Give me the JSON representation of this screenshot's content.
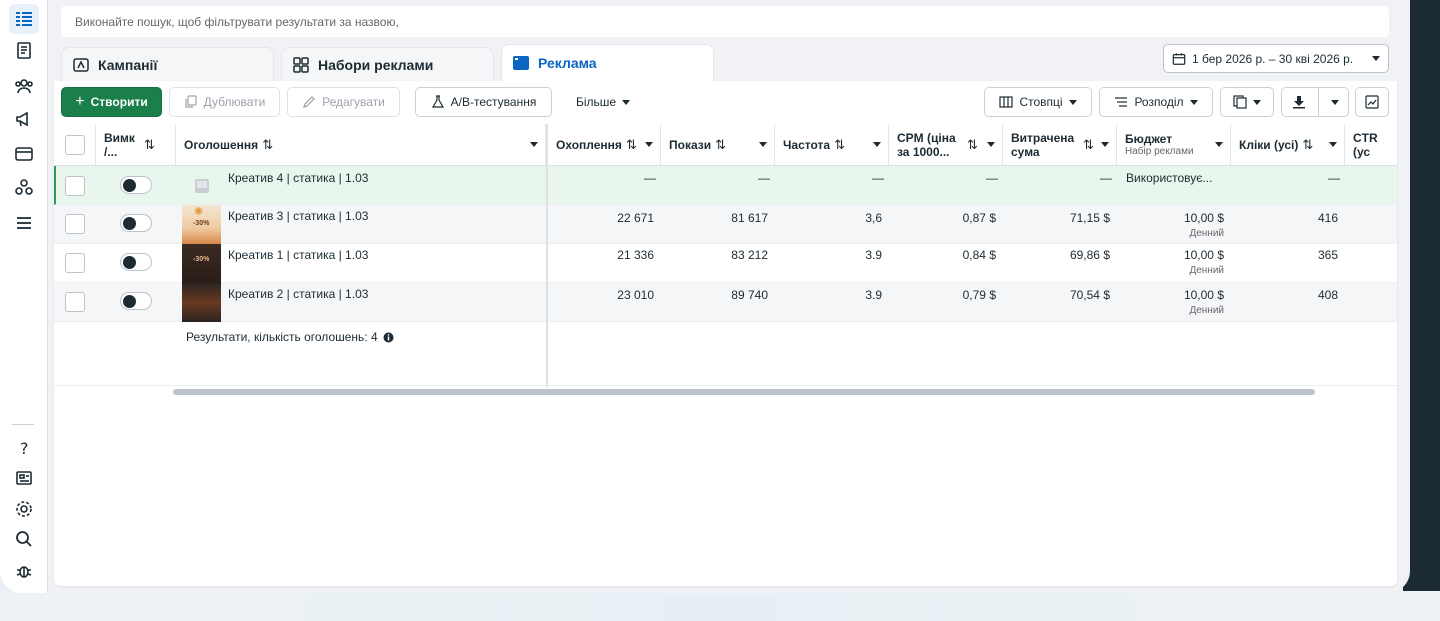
{
  "search": {
    "placeholder": "Виконайте пошук, щоб фільтрувати результати за назвою,"
  },
  "tabs": [
    {
      "label": "Кампанії",
      "icon": "campaign-icon"
    },
    {
      "label": "Набори реклами",
      "icon": "grid-icon"
    },
    {
      "label": "Реклама",
      "icon": "ad-icon",
      "active": true
    }
  ],
  "date_range": "1 бер 2026 р. – 30 кві 2026 р.",
  "toolbar": {
    "create": "Створити",
    "duplicate": "Дублювати",
    "edit": "Редагувати",
    "ab_test": "A/B-тестування",
    "more": "Більше",
    "columns": "Стовпці",
    "breakdown": "Розподіл"
  },
  "table": {
    "headers": {
      "toggle": "Вимк /...",
      "ad": "Оголошення",
      "reach": "Охоплення",
      "impressions": "Покази",
      "frequency": "Частота",
      "cpm": "CPM (ціна за 1000...",
      "spent": "Витрачена сума",
      "budget": "Бюджет",
      "budget_sub": "Набір реклами",
      "clicks": "Кліки (усі)",
      "ctr": "CTR (ус"
    },
    "rows": [
      {
        "name": "Креатив 4 | статика | 1.03",
        "reach": "—",
        "impressions": "—",
        "frequency": "—",
        "cpm": "—",
        "spent": "—",
        "budget": "Використовує...",
        "budget_sub": "",
        "clicks": "—"
      },
      {
        "name": "Креатив 3 | статика | 1.03",
        "reach": "22 671",
        "impressions": "81 617",
        "frequency": "3,6",
        "cpm": "0,87 $",
        "spent": "71,15 $",
        "budget": "10,00 $",
        "budget_sub": "Денний",
        "clicks": "416"
      },
      {
        "name": "Креатив 1 | статика | 1.03",
        "reach": "21 336",
        "impressions": "83 212",
        "frequency": "3.9",
        "cpm": "0,84 $",
        "spent": "69,86 $",
        "budget": "10,00 $",
        "budget_sub": "Денний",
        "clicks": "365"
      },
      {
        "name": "Креатив 2 | статика | 1.03",
        "reach": "23 010",
        "impressions": "89 740",
        "frequency": "3.9",
        "cpm": "0,79 $",
        "spent": "70,54 $",
        "budget": "10,00 $",
        "budget_sub": "Денний",
        "clicks": "408"
      }
    ],
    "footer": "Результати, кількість оголошень: 4"
  },
  "colors": {
    "accent": "#0a66c2",
    "create": "#1a7f4b",
    "highlight": "#e9f6ee"
  }
}
